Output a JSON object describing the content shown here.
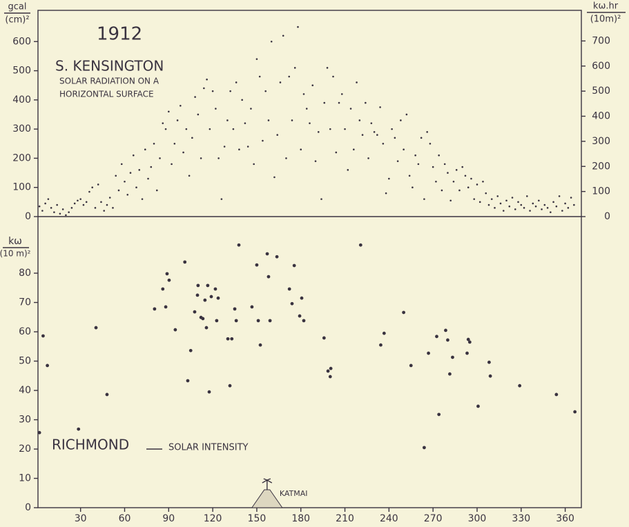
{
  "chart_data": [
    {
      "type": "scatter",
      "title": "1912",
      "annotations": [
        "S. KENSINGTON",
        "SOLAR RADIATION ON A",
        "HORIZONTAL SURFACE"
      ],
      "ylabel": [
        "gcal",
        "(cm)²"
      ],
      "y2label": [
        "kω.hr",
        "(10m)²"
      ],
      "color": "#3a3340",
      "x": [
        2,
        4,
        6,
        8,
        10,
        12,
        14,
        16,
        18,
        20,
        22,
        24,
        26,
        28,
        30,
        32,
        34,
        36,
        38,
        40,
        42,
        44,
        46,
        48,
        50,
        52,
        54,
        56,
        58,
        60,
        62,
        64,
        66,
        68,
        70,
        72,
        74,
        76,
        78,
        80,
        82,
        84,
        86,
        88,
        90,
        92,
        94,
        96,
        98,
        100,
        102,
        104,
        106,
        108,
        110,
        112,
        114,
        116,
        118,
        120,
        122,
        124,
        126,
        128,
        130,
        132,
        134,
        136,
        138,
        140,
        142,
        144,
        146,
        148,
        150,
        152,
        154,
        156,
        158,
        160,
        162,
        164,
        166,
        168,
        170,
        172,
        174,
        176,
        178,
        180,
        182,
        184,
        186,
        188,
        190,
        192,
        194,
        196,
        198,
        200,
        202,
        204,
        206,
        208,
        210,
        212,
        214,
        216,
        218,
        220,
        222,
        224,
        226,
        228,
        230,
        232,
        234,
        236,
        238,
        240,
        242,
        244,
        246,
        248,
        250,
        252,
        254,
        256,
        258,
        260,
        262,
        264,
        266,
        268,
        270,
        272,
        274,
        276,
        278,
        280,
        282,
        284,
        286,
        288,
        290,
        292,
        294,
        296,
        298,
        300,
        302,
        304,
        306,
        308,
        310,
        312,
        314,
        316,
        318,
        320,
        322,
        324,
        326,
        328,
        330,
        332,
        334,
        336,
        338,
        340,
        342,
        344,
        346,
        348,
        350,
        352,
        354,
        356,
        358,
        360,
        362,
        364,
        366
      ],
      "values": [
        35,
        20,
        45,
        60,
        30,
        15,
        40,
        10,
        25,
        5,
        15,
        30,
        45,
        55,
        60,
        40,
        50,
        85,
        100,
        30,
        110,
        50,
        20,
        40,
        65,
        30,
        140,
        90,
        180,
        120,
        75,
        150,
        210,
        100,
        160,
        60,
        230,
        130,
        170,
        250,
        90,
        200,
        320,
        300,
        360,
        180,
        250,
        330,
        380,
        220,
        300,
        140,
        270,
        410,
        350,
        200,
        440,
        470,
        300,
        430,
        370,
        200,
        60,
        240,
        330,
        430,
        300,
        460,
        230,
        400,
        320,
        240,
        370,
        180,
        540,
        480,
        260,
        430,
        330,
        600,
        135,
        280,
        460,
        620,
        200,
        480,
        330,
        510,
        650,
        230,
        420,
        370,
        320,
        450,
        190,
        290,
        60,
        390,
        510,
        300,
        480,
        220,
        390,
        420,
        300,
        160,
        370,
        230,
        460,
        330,
        280,
        390,
        200,
        320,
        290,
        280,
        375,
        250,
        80,
        130,
        300,
        270,
        190,
        330,
        230,
        350,
        140,
        100,
        210,
        180,
        270,
        60,
        290,
        250,
        170,
        120,
        210,
        90,
        180,
        150,
        55,
        120,
        160,
        90,
        170,
        140,
        100,
        130,
        60,
        110,
        50,
        120,
        80,
        40,
        60,
        30,
        70,
        45,
        20,
        55,
        35,
        65,
        25,
        50,
        40,
        30,
        70,
        20,
        45,
        35,
        55,
        25,
        40,
        30,
        15,
        50,
        35,
        70,
        20,
        45,
        30,
        65,
        40
      ],
      "xlim": [
        1,
        371
      ],
      "ylim": [
        0,
        707
      ],
      "yticks": [
        0,
        100,
        200,
        300,
        400,
        500,
        600
      ],
      "y2lim": [
        0,
        822
      ],
      "y2ticks": [
        0,
        100,
        200,
        300,
        400,
        500,
        600,
        700
      ]
    },
    {
      "type": "scatter",
      "title": "RICHMOND",
      "subtitle": "SOLAR INTENSITY",
      "ylabel": [
        "kω",
        "(10 m)²"
      ],
      "annotation": {
        "text": "KATMAI",
        "x": 157
      },
      "color": "#3a3340",
      "x": [
        2,
        4.5,
        7.4,
        28.6,
        40.5,
        48,
        80.4,
        86,
        88,
        88.9,
        90.3,
        94.5,
        101,
        103,
        105,
        107.7,
        109.6,
        110,
        112,
        113.3,
        114.7,
        115.7,
        116.6,
        117.6,
        119,
        121.8,
        122.7,
        123.7,
        130.3,
        131.7,
        133,
        135,
        136,
        137.8,
        146.7,
        150,
        151,
        152.4,
        157.1,
        158,
        159,
        163.7,
        172.2,
        174,
        175.5,
        179.2,
        180.6,
        182,
        195.8,
        198.5,
        200,
        200.4,
        220.7,
        234.4,
        236.7,
        250,
        255,
        264,
        266.9,
        272.5,
        274,
        278.6,
        280,
        281.4,
        283.3,
        293.2,
        294,
        295,
        300.7,
        308.2,
        309,
        329,
        354,
        366.6
      ],
      "values": [
        25.6,
        58.6,
        48.5,
        26.8,
        61.4,
        38.6,
        67.8,
        74.6,
        68.5,
        79.8,
        77.6,
        60.7,
        83.8,
        43.3,
        53.6,
        66.8,
        72.5,
        75.8,
        64.9,
        64.5,
        70.8,
        61.4,
        75.8,
        39.5,
        72,
        74.6,
        63.8,
        71.5,
        57.6,
        41.6,
        57.6,
        67.8,
        63.8,
        89.6,
        68.5,
        82.8,
        63.8,
        55.5,
        86.6,
        78.8,
        63.8,
        85.6,
        74.6,
        69.6,
        82.6,
        65.4,
        71.5,
        63.8,
        57.9,
        46.6,
        44.7,
        47.5,
        89.6,
        55.5,
        59.5,
        66.6,
        48.5,
        20.5,
        52.7,
        58.4,
        31.8,
        60.5,
        57.2,
        45.6,
        51.3,
        52.7,
        57.4,
        56.5,
        34.6,
        49.6,
        44.9,
        41.6,
        38.6,
        32.7
      ],
      "xlim": [
        1,
        371
      ],
      "xticks": [
        30,
        60,
        90,
        120,
        150,
        180,
        210,
        240,
        270,
        300,
        330,
        360
      ],
      "ylim": [
        0,
        99.3
      ],
      "yticks": [
        0,
        10,
        20,
        30,
        40,
        50,
        60,
        70,
        80
      ]
    }
  ]
}
